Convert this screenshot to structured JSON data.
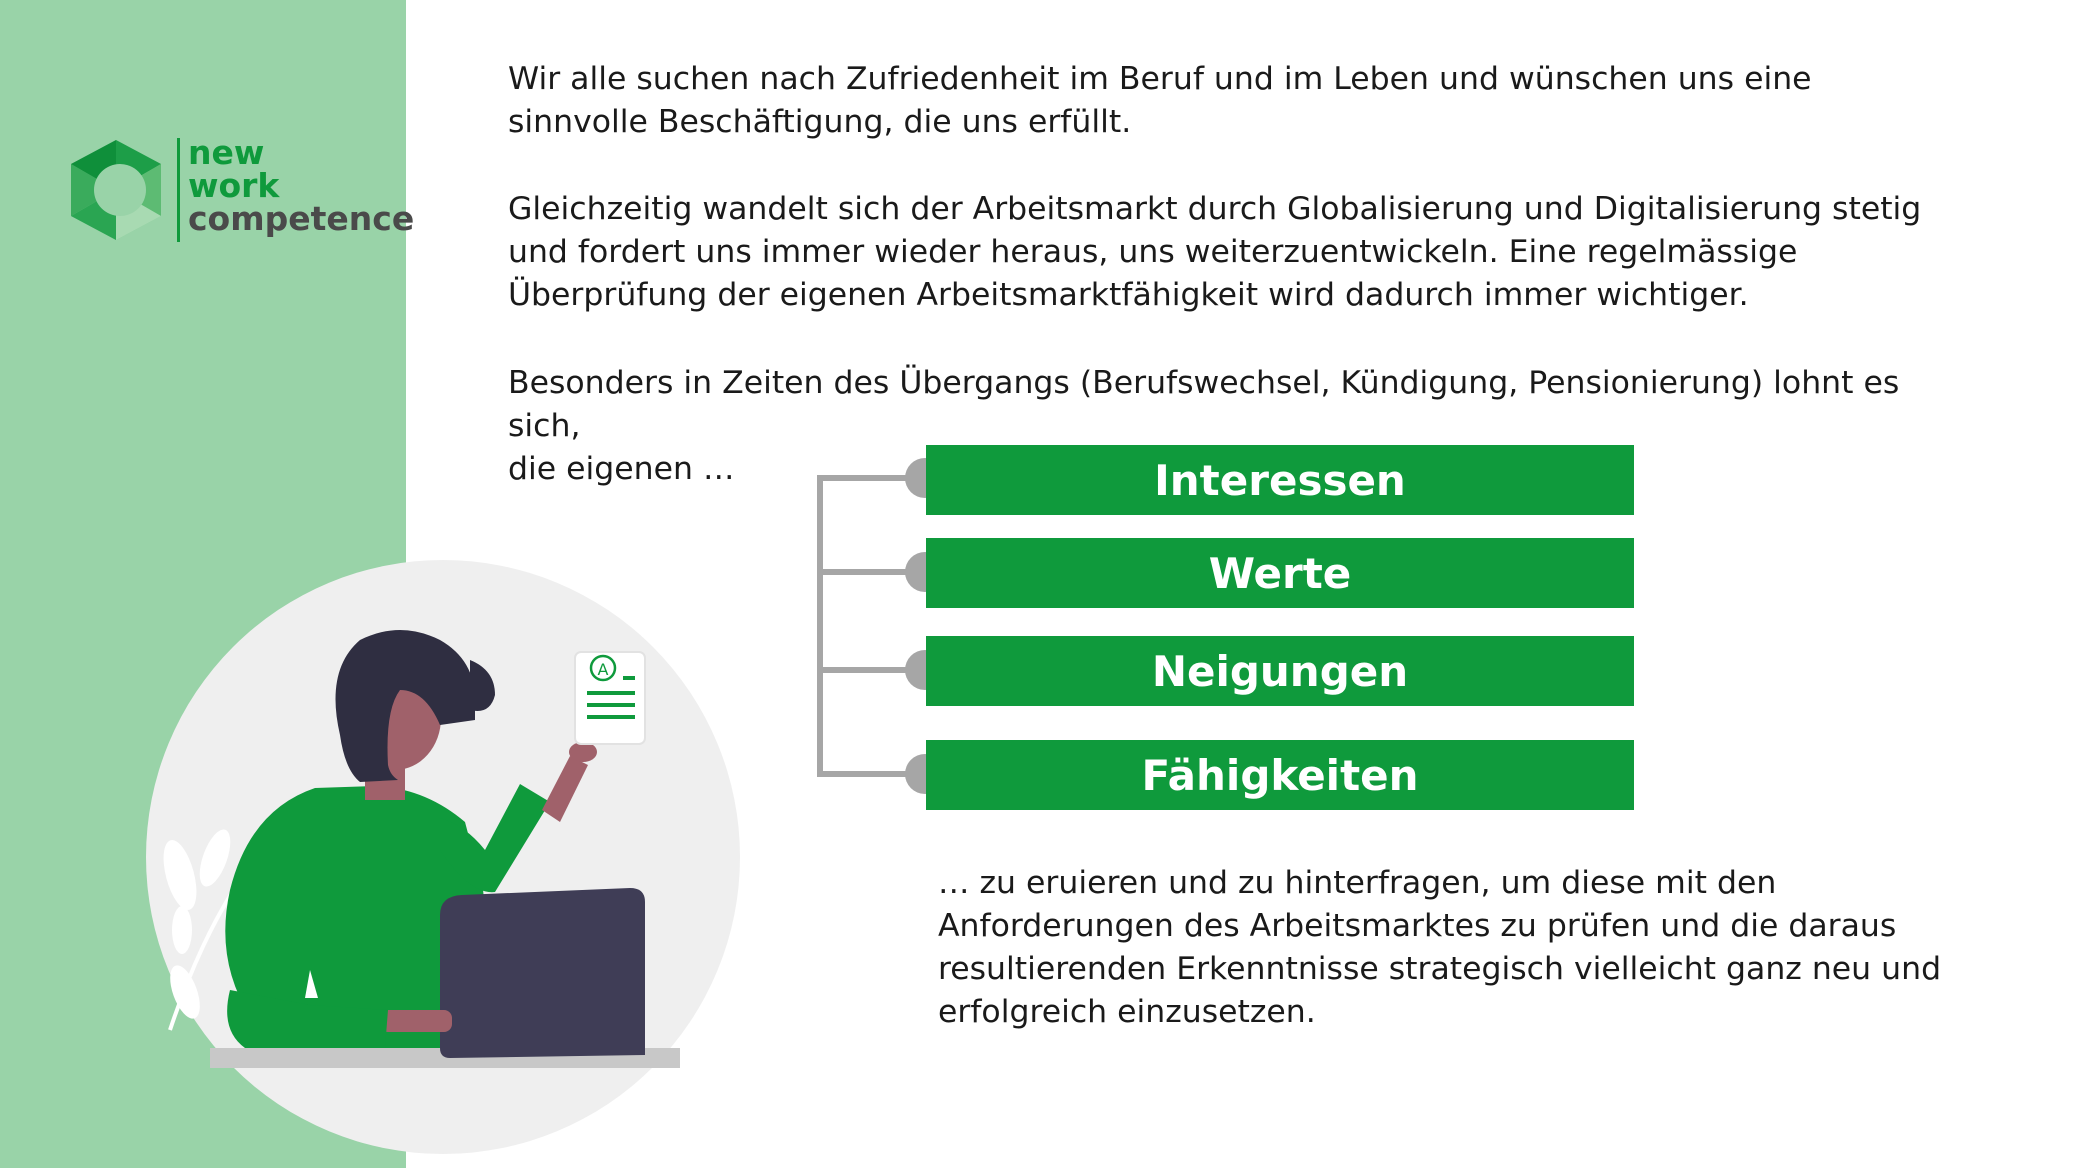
{
  "logo": {
    "line1": "new",
    "line2": "work",
    "line3": "competence"
  },
  "paragraphs": {
    "p1": "Wir alle suchen nach Zufriedenheit im Beruf und im Leben und wünschen uns eine\nsinnvolle Beschäftigung, die uns erfüllt.",
    "p2": "Gleichzeitig wandelt sich der Arbeitsmarkt durch Globalisierung und Digitalisierung stetig\nund fordert uns immer wieder heraus, uns weiterzuentwickeln. Eine regelmässige\nÜberprüfung der eigenen Arbeitsmarktfähigkeit wird dadurch immer wichtiger.",
    "p3": "Besonders in Zeiten des Übergangs (Berufswechsel, Kündigung, Pensionierung) lohnt es\nsich,",
    "p4": "die eigenen …",
    "p5": "… zu eruieren und zu hinterfragen, um diese mit den\nAnforderungen des Arbeitsmarktes zu prüfen und die daraus\nresultierenden Erkenntnisse strategisch vielleicht ganz neu und\nerfolgreich einzusetzen."
  },
  "bars": [
    "Interessen",
    "Werte",
    "Neigungen",
    "Fähigkeiten"
  ],
  "document_letter": "A",
  "colors": {
    "sidebar": "#99d3a8",
    "brand_green": "#0f9a3c",
    "connector_gray": "#a6a6a6",
    "logo_gray": "#4a4a4a"
  }
}
